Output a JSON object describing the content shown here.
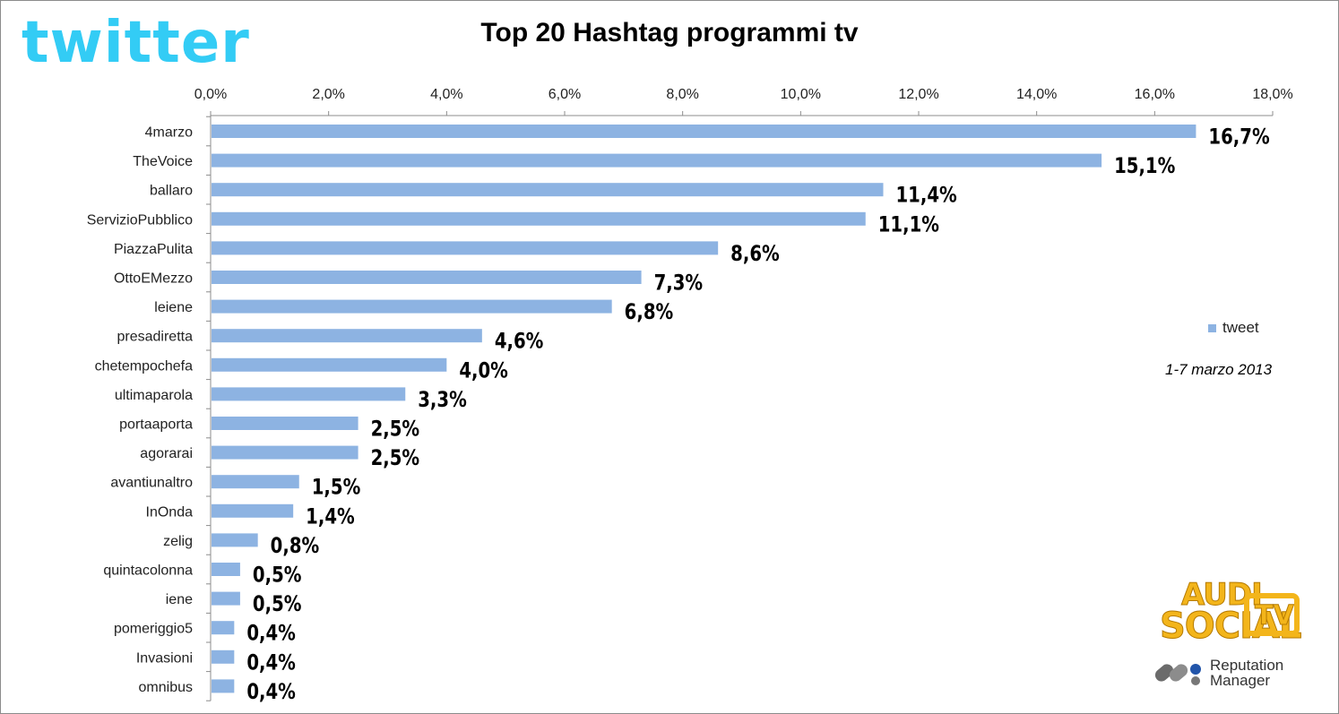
{
  "logo": {
    "text": "twitter"
  },
  "chart_data": {
    "type": "bar",
    "orientation": "horizontal",
    "title": "Top 20 Hashtag programmi tv",
    "categories": [
      "4marzo",
      "TheVoice",
      "ballaro",
      "ServizioPubblico",
      "PiazzaPulita",
      "OttoEMezzo",
      "leiene",
      "presadiretta",
      "chetempochefa",
      "ultimaparola",
      "portaaporta",
      "agorarai",
      "avantiunaltro",
      "InOnda",
      "zelig",
      "quintacolonna",
      "iene",
      "pomeriggio5",
      "Invasioni",
      "omnibus"
    ],
    "series": [
      {
        "name": "tweet",
        "values": [
          16.7,
          15.1,
          11.4,
          11.1,
          8.6,
          7.3,
          6.8,
          4.6,
          4.0,
          3.3,
          2.5,
          2.5,
          1.5,
          1.4,
          0.8,
          0.5,
          0.5,
          0.4,
          0.4,
          0.4
        ]
      }
    ],
    "data_labels": [
      "16,7%",
      "15,1%",
      "11,4%",
      "11,1%",
      "8,6%",
      "7,3%",
      "6,8%",
      "4,6%",
      "4,0%",
      "3,3%",
      "2,5%",
      "2,5%",
      "1,5%",
      "1,4%",
      "0,8%",
      "0,5%",
      "0,5%",
      "0,4%",
      "0,4%",
      "0,4%"
    ],
    "x_ticks": [
      0,
      2,
      4,
      6,
      8,
      10,
      12,
      14,
      16,
      18
    ],
    "x_tick_labels": [
      "0,0%",
      "2,0%",
      "4,0%",
      "6,0%",
      "8,0%",
      "10,0%",
      "12,0%",
      "14,0%",
      "16,0%",
      "18,0%"
    ],
    "xlim": [
      0,
      18
    ],
    "x_axis_position": "top",
    "grid": false,
    "legend_placement": "right",
    "bar_color": "#8db3e2",
    "annotation": "1-7 marzo 2013"
  },
  "branding": {
    "audi_line1": "AUDI",
    "audi_line2": "SOCIAL",
    "audi_tv": "TV",
    "rep_line1": "Reputation",
    "rep_line2": "Manager"
  }
}
